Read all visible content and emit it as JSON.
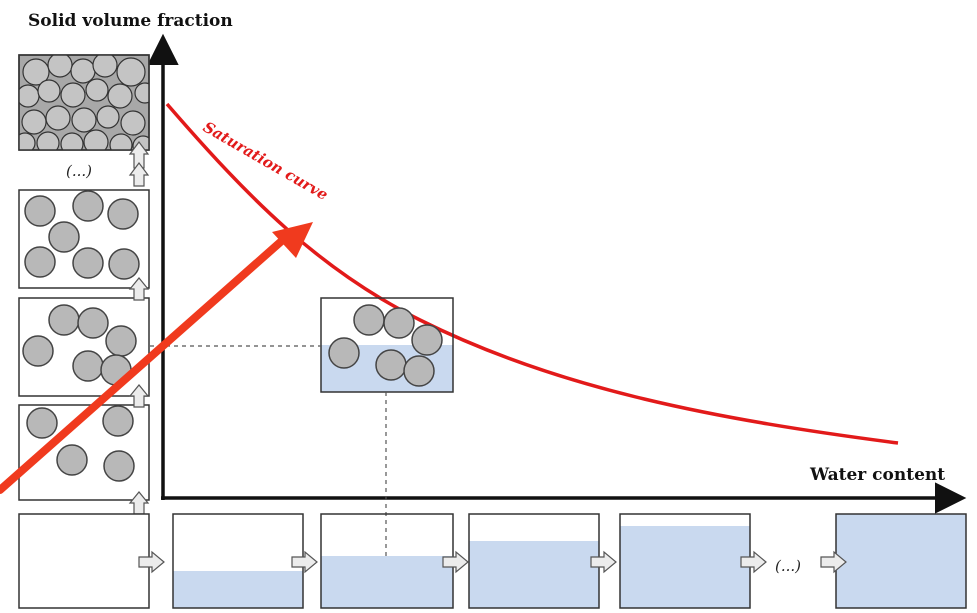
{
  "y_axis_label": "Solid volume fraction",
  "x_axis_label": "Water content",
  "curve_label": "Saturation curve",
  "ellipsis_vertical": "(...)",
  "ellipsis_horizontal": "(...)",
  "colors": {
    "curve": "#e21a1a",
    "arrow": "#f03a1e",
    "water": "#c9d9ef",
    "particle_fill": "#b8b8b8",
    "particle_stroke": "#444444",
    "axis": "#111111",
    "dashed_line": "#555555"
  }
}
